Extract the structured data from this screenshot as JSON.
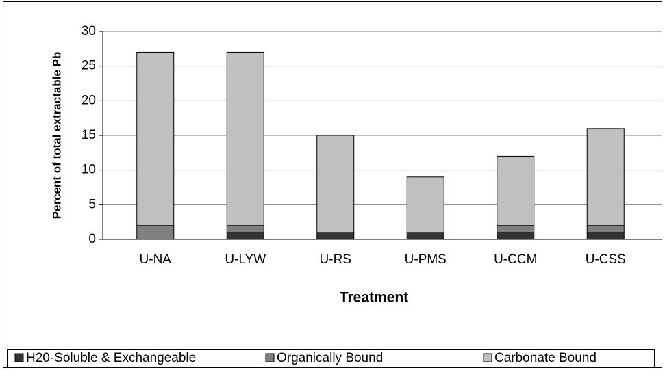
{
  "chart_data": {
    "type": "stacked_bar",
    "x_label": "Treatment",
    "y_label": "Percent of total extractable Pb",
    "categories": [
      "U-NA",
      "U-LYW",
      "U-RS",
      "U-PMS",
      "U-CCM",
      "U-CSS"
    ],
    "series": [
      {
        "name": "H20-Soluble & Exchangeable",
        "color": "#333333",
        "values": [
          0,
          1,
          1,
          1,
          1,
          1
        ]
      },
      {
        "name": "Organically Bound",
        "color": "#808080",
        "values": [
          2,
          1,
          0,
          0,
          1,
          1
        ]
      },
      {
        "name": "Carbonate Bound",
        "color": "#c0c0c0",
        "values": [
          25,
          25,
          14,
          8,
          10,
          14
        ]
      }
    ],
    "ylim": [
      0,
      30
    ],
    "yticks": [
      0,
      5,
      10,
      15,
      20,
      25,
      30
    ],
    "grid": true,
    "legend": "bottom"
  }
}
